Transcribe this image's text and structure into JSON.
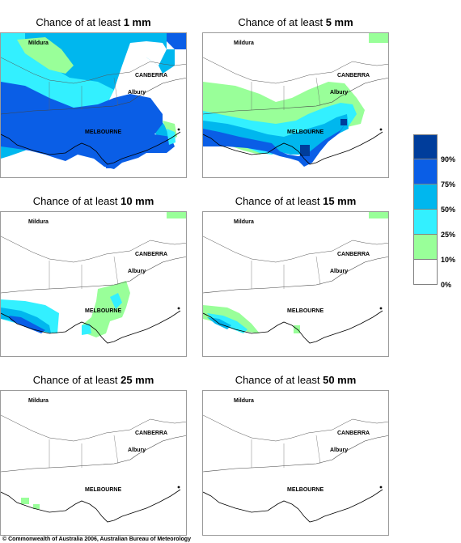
{
  "panels": [
    {
      "title_prefix": "Chance of at least ",
      "amount": "1 mm"
    },
    {
      "title_prefix": "Chance of at least ",
      "amount": "5 mm"
    },
    {
      "title_prefix": "Chance of at least ",
      "amount": "10 mm"
    },
    {
      "title_prefix": "Chance of at least ",
      "amount": "15 mm"
    },
    {
      "title_prefix": "Chance of at least ",
      "amount": "25 mm"
    },
    {
      "title_prefix": "Chance of at least ",
      "amount": "50 mm"
    }
  ],
  "places": {
    "mildura": "Mildura",
    "canberra": "CANBERRA",
    "albury": "Albury",
    "melbourne": "MELBOURNE"
  },
  "legend": {
    "labels": [
      "90%",
      "75%",
      "50%",
      "25%",
      "10%",
      "0%"
    ],
    "colors": [
      "#003d9b",
      "#0a5ee6",
      "#00b7ee",
      "#33f0ff",
      "#99ff99",
      "#ffffff"
    ]
  },
  "copyright": "© Commonwealth of Australia 2006, Australian Bureau of Meteorology"
}
